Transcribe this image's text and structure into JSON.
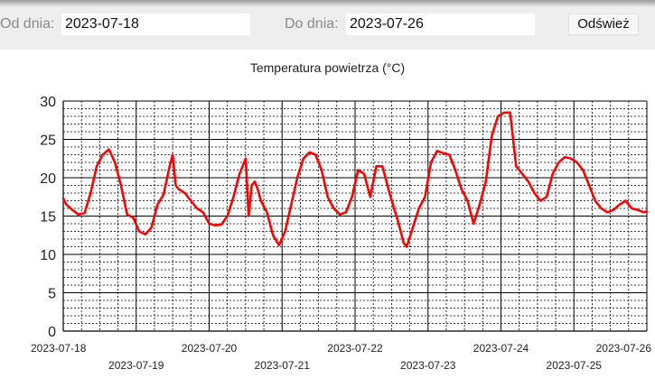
{
  "filters": {
    "from_label": "Od dnia:",
    "from_value": "2023-07-18",
    "to_label": "Do dnia:",
    "to_value": "2023-07-26",
    "refresh_label": "Odśwież"
  },
  "chart_data": {
    "type": "line",
    "title": "Temperatura powietrza (°C)",
    "xlabel": "",
    "ylabel": "",
    "ylim": [
      0,
      30
    ],
    "y_ticks": [
      0,
      5,
      10,
      15,
      20,
      25,
      30
    ],
    "xlim": [
      "2023-07-18",
      "2023-07-26"
    ],
    "x_tick_labels": [
      "2023-07-18",
      "2023-07-19",
      "2023-07-20",
      "2023-07-21",
      "2023-07-22",
      "2023-07-23",
      "2023-07-24",
      "2023-07-25",
      "2023-07-26"
    ],
    "grid": true,
    "series_color": "#ff0000",
    "series": [
      {
        "x": [
          "2023-07-18 00:00",
          "2023-07-18 01:00",
          "2023-07-18 03:00",
          "2023-07-18 05:00",
          "2023-07-18 07:00",
          "2023-07-18 09:00",
          "2023-07-18 11:00",
          "2023-07-18 13:00",
          "2023-07-18 15:00",
          "2023-07-18 17:00",
          "2023-07-18 19:00",
          "2023-07-18 21:00",
          "2023-07-18 23:00",
          "2023-07-19 01:00",
          "2023-07-19 03:00",
          "2023-07-19 05:00",
          "2023-07-19 07:00",
          "2023-07-19 09:00",
          "2023-07-19 11:00",
          "2023-07-19 12:00",
          "2023-07-19 13:00",
          "2023-07-19 14:00",
          "2023-07-19 16:00",
          "2023-07-19 18:00",
          "2023-07-19 20:00",
          "2023-07-19 22:00",
          "2023-07-20 00:00",
          "2023-07-20 02:00",
          "2023-07-20 04:00",
          "2023-07-20 06:00",
          "2023-07-20 08:00",
          "2023-07-20 10:00",
          "2023-07-20 12:00",
          "2023-07-20 13:00",
          "2023-07-20 14:00",
          "2023-07-20 15:00",
          "2023-07-20 16:00",
          "2023-07-20 17:00",
          "2023-07-20 19:00",
          "2023-07-20 21:00",
          "2023-07-20 23:00",
          "2023-07-21 01:00",
          "2023-07-21 03:00",
          "2023-07-21 05:00",
          "2023-07-21 07:00",
          "2023-07-21 09:00",
          "2023-07-21 11:00",
          "2023-07-21 13:00",
          "2023-07-21 15:00",
          "2023-07-21 17:00",
          "2023-07-21 19:00",
          "2023-07-21 21:00",
          "2023-07-21 23:00",
          "2023-07-22 01:00",
          "2023-07-22 03:00",
          "2023-07-22 05:00",
          "2023-07-22 07:00",
          "2023-07-22 09:00",
          "2023-07-22 11:00",
          "2023-07-22 13:00",
          "2023-07-22 14:00",
          "2023-07-22 15:00",
          "2023-07-22 16:00",
          "2023-07-22 17:00",
          "2023-07-22 19:00",
          "2023-07-22 21:00",
          "2023-07-22 23:00",
          "2023-07-23 01:00",
          "2023-07-23 03:00",
          "2023-07-23 05:00",
          "2023-07-23 07:00",
          "2023-07-23 09:00",
          "2023-07-23 11:00",
          "2023-07-23 13:00",
          "2023-07-23 15:00",
          "2023-07-23 17:00",
          "2023-07-23 19:00",
          "2023-07-23 21:00",
          "2023-07-23 23:00",
          "2023-07-24 01:00",
          "2023-07-24 03:00",
          "2023-07-24 05:00",
          "2023-07-24 07:00",
          "2023-07-24 09:00",
          "2023-07-24 11:00",
          "2023-07-24 13:00",
          "2023-07-24 15:00",
          "2023-07-24 17:00",
          "2023-07-24 19:00",
          "2023-07-24 21:00",
          "2023-07-24 23:00",
          "2023-07-25 01:00",
          "2023-07-25 03:00",
          "2023-07-25 05:00",
          "2023-07-25 07:00",
          "2023-07-25 09:00",
          "2023-07-25 11:00",
          "2023-07-25 13:00",
          "2023-07-25 15:00",
          "2023-07-25 17:00",
          "2023-07-25 19:00",
          "2023-07-25 21:00",
          "2023-07-25 23:00",
          "2023-07-26 00:00"
        ],
        "values": [
          17.3,
          16.5,
          15.8,
          15.2,
          15.4,
          18.0,
          21.5,
          23.0,
          23.7,
          22.0,
          19.0,
          15.2,
          14.8,
          13.0,
          12.6,
          13.5,
          16.5,
          17.8,
          21.5,
          23.0,
          19.0,
          18.5,
          18.0,
          17.0,
          16.0,
          15.5,
          14.0,
          13.8,
          13.9,
          15.0,
          17.5,
          20.5,
          22.5,
          15.0,
          19.0,
          19.5,
          18.5,
          17.0,
          15.5,
          12.5,
          11.2,
          13.0,
          16.5,
          20.0,
          22.5,
          23.3,
          23.0,
          21.0,
          17.5,
          16.0,
          15.2,
          15.5,
          17.5,
          21.0,
          20.5,
          17.5,
          21.5,
          21.5,
          18.5,
          15.8,
          14.5,
          13.0,
          11.5,
          11.0,
          13.5,
          16.0,
          17.5,
          22.0,
          23.5,
          23.2,
          23.0,
          21.0,
          18.5,
          17.0,
          14.0,
          16.5,
          19.5,
          25.5,
          28.0,
          28.5,
          28.5,
          21.5,
          20.5,
          19.5,
          18.0,
          17.0,
          17.5,
          20.5,
          22.0,
          22.7,
          22.5,
          22.0,
          21.0,
          19.0,
          17.0,
          16.0,
          15.5,
          15.8,
          16.5,
          17.0,
          16.0,
          15.8,
          15.5,
          15.6
        ]
      }
    ]
  }
}
